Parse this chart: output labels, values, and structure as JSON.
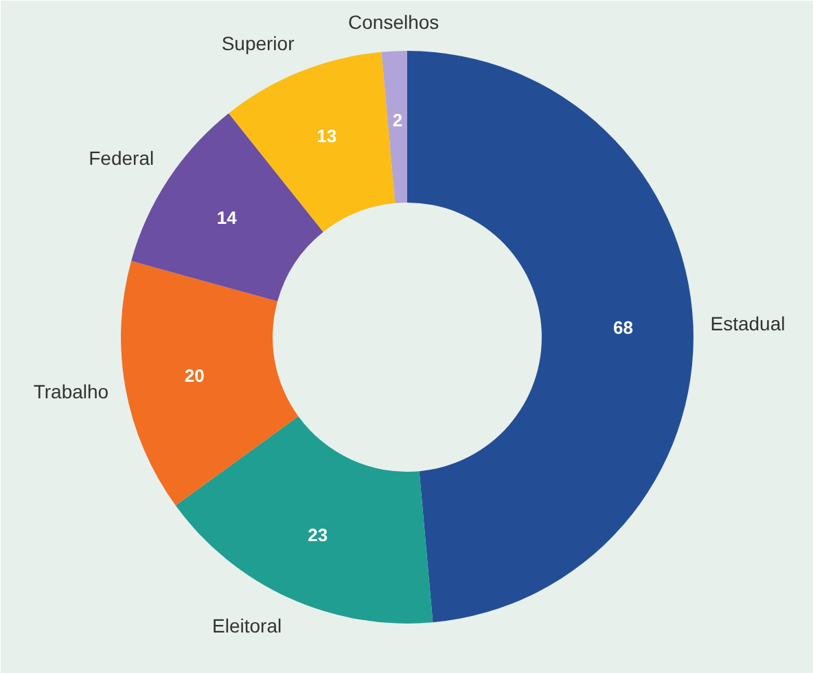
{
  "chart_data": {
    "type": "donut",
    "categories": [
      "Estadual",
      "Eleitoral",
      "Trabalho",
      "Federal",
      "Superior",
      "Conselhos"
    ],
    "values": [
      68,
      23,
      20,
      14,
      13,
      2
    ],
    "colors": [
      "#234e96",
      "#1f9e91",
      "#f26e22",
      "#6b4fa3",
      "#fbbd16",
      "#b0a4d8"
    ],
    "data_labels": true
  }
}
